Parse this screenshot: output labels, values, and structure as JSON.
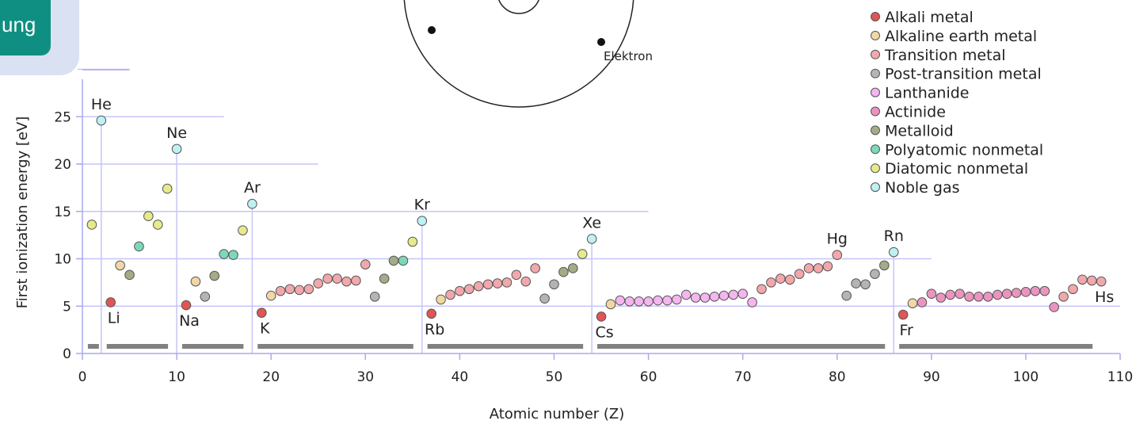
{
  "badge": {
    "text": "ung"
  },
  "atom_diagram": {
    "electron_label": "Elektron"
  },
  "colors": {
    "alkali": "#e05555",
    "alkaline_earth": "#f1d7a5",
    "transition": "#f2a8ab",
    "post_transition": "#b4b4b4",
    "lanthanide": "#f5b5ef",
    "actinide": "#ec94c0",
    "metalloid": "#a2ac86",
    "polyatomic": "#7cd8b8",
    "diatomic": "#e6ea8a",
    "noble": "#bff0f2",
    "grid": "#c6c6f8",
    "axis": "#aaaaee",
    "bar": "#808080"
  },
  "chart_data": {
    "type": "scatter",
    "xlabel": "Atomic number (Z)",
    "ylabel": "First ionization energy [eV]",
    "xlim": [
      0,
      110
    ],
    "ylim": [
      0,
      28
    ],
    "xticks": [
      0,
      10,
      20,
      30,
      40,
      50,
      60,
      70,
      80,
      90,
      100,
      110
    ],
    "yticks": [
      0,
      5,
      10,
      15,
      20,
      25
    ],
    "legend": [
      {
        "key": "alkali",
        "label": "Alkali metal"
      },
      {
        "key": "alkaline_earth",
        "label": "Alkaline earth metal"
      },
      {
        "key": "transition",
        "label": "Transition metal"
      },
      {
        "key": "post_transition",
        "label": "Post-transition metal"
      },
      {
        "key": "lanthanide",
        "label": "Lanthanide"
      },
      {
        "key": "actinide",
        "label": "Actinide"
      },
      {
        "key": "metalloid",
        "label": "Metalloid"
      },
      {
        "key": "polyatomic",
        "label": "Polyatomic nonmetal"
      },
      {
        "key": "diatomic",
        "label": "Diatomic nonmetal"
      },
      {
        "key": "noble",
        "label": "Noble gas"
      }
    ],
    "legend_position": "top-right",
    "period_bars": [
      [
        1,
        2
      ],
      [
        3,
        10
      ],
      [
        11,
        18
      ],
      [
        19,
        36
      ],
      [
        37,
        54
      ],
      [
        55,
        86
      ],
      [
        87,
        108
      ]
    ],
    "noble_gas_lines": [
      2,
      10,
      18,
      36,
      54,
      86
    ],
    "labels": [
      {
        "text": "He",
        "z": 2,
        "pos": "above"
      },
      {
        "text": "Ne",
        "z": 10,
        "pos": "above"
      },
      {
        "text": "Ar",
        "z": 18,
        "pos": "above"
      },
      {
        "text": "Kr",
        "z": 36,
        "pos": "above"
      },
      {
        "text": "Xe",
        "z": 54,
        "pos": "above"
      },
      {
        "text": "Rn",
        "z": 86,
        "pos": "above"
      },
      {
        "text": "Hg",
        "z": 80,
        "pos": "above"
      },
      {
        "text": "Li",
        "z": 3,
        "pos": "below"
      },
      {
        "text": "Na",
        "z": 11,
        "pos": "below"
      },
      {
        "text": "K",
        "z": 19,
        "pos": "below"
      },
      {
        "text": "Rb",
        "z": 37,
        "pos": "below"
      },
      {
        "text": "Cs",
        "z": 55,
        "pos": "below"
      },
      {
        "text": "Fr",
        "z": 87,
        "pos": "below"
      },
      {
        "text": "Hs",
        "z": 108,
        "pos": "below"
      }
    ],
    "points": [
      [
        1,
        13.6,
        "diatomic"
      ],
      [
        2,
        24.6,
        "noble"
      ],
      [
        3,
        5.4,
        "alkali"
      ],
      [
        4,
        9.3,
        "alkaline_earth"
      ],
      [
        5,
        8.3,
        "metalloid"
      ],
      [
        6,
        11.3,
        "polyatomic"
      ],
      [
        7,
        14.5,
        "diatomic"
      ],
      [
        8,
        13.6,
        "diatomic"
      ],
      [
        9,
        17.4,
        "diatomic"
      ],
      [
        10,
        21.6,
        "noble"
      ],
      [
        11,
        5.1,
        "alkali"
      ],
      [
        12,
        7.6,
        "alkaline_earth"
      ],
      [
        13,
        6.0,
        "post_transition"
      ],
      [
        14,
        8.2,
        "metalloid"
      ],
      [
        15,
        10.5,
        "polyatomic"
      ],
      [
        16,
        10.4,
        "polyatomic"
      ],
      [
        17,
        13.0,
        "diatomic"
      ],
      [
        18,
        15.8,
        "noble"
      ],
      [
        19,
        4.3,
        "alkali"
      ],
      [
        20,
        6.1,
        "alkaline_earth"
      ],
      [
        21,
        6.6,
        "transition"
      ],
      [
        22,
        6.8,
        "transition"
      ],
      [
        23,
        6.7,
        "transition"
      ],
      [
        24,
        6.8,
        "transition"
      ],
      [
        25,
        7.4,
        "transition"
      ],
      [
        26,
        7.9,
        "transition"
      ],
      [
        27,
        7.9,
        "transition"
      ],
      [
        28,
        7.6,
        "transition"
      ],
      [
        29,
        7.7,
        "transition"
      ],
      [
        30,
        9.4,
        "transition"
      ],
      [
        31,
        6.0,
        "post_transition"
      ],
      [
        32,
        7.9,
        "metalloid"
      ],
      [
        33,
        9.8,
        "metalloid"
      ],
      [
        34,
        9.8,
        "polyatomic"
      ],
      [
        35,
        11.8,
        "diatomic"
      ],
      [
        36,
        14.0,
        "noble"
      ],
      [
        37,
        4.2,
        "alkali"
      ],
      [
        38,
        5.7,
        "alkaline_earth"
      ],
      [
        39,
        6.2,
        "transition"
      ],
      [
        40,
        6.6,
        "transition"
      ],
      [
        41,
        6.8,
        "transition"
      ],
      [
        42,
        7.1,
        "transition"
      ],
      [
        43,
        7.3,
        "transition"
      ],
      [
        44,
        7.4,
        "transition"
      ],
      [
        45,
        7.5,
        "transition"
      ],
      [
        46,
        8.3,
        "transition"
      ],
      [
        47,
        7.6,
        "transition"
      ],
      [
        48,
        9.0,
        "transition"
      ],
      [
        49,
        5.8,
        "post_transition"
      ],
      [
        50,
        7.3,
        "post_transition"
      ],
      [
        51,
        8.6,
        "metalloid"
      ],
      [
        52,
        9.0,
        "metalloid"
      ],
      [
        53,
        10.5,
        "diatomic"
      ],
      [
        54,
        12.1,
        "noble"
      ],
      [
        55,
        3.9,
        "alkali"
      ],
      [
        56,
        5.2,
        "alkaline_earth"
      ],
      [
        57,
        5.6,
        "lanthanide"
      ],
      [
        58,
        5.5,
        "lanthanide"
      ],
      [
        59,
        5.5,
        "lanthanide"
      ],
      [
        60,
        5.5,
        "lanthanide"
      ],
      [
        61,
        5.6,
        "lanthanide"
      ],
      [
        62,
        5.6,
        "lanthanide"
      ],
      [
        63,
        5.7,
        "lanthanide"
      ],
      [
        64,
        6.2,
        "lanthanide"
      ],
      [
        65,
        5.9,
        "lanthanide"
      ],
      [
        66,
        5.9,
        "lanthanide"
      ],
      [
        67,
        6.0,
        "lanthanide"
      ],
      [
        68,
        6.1,
        "lanthanide"
      ],
      [
        69,
        6.2,
        "lanthanide"
      ],
      [
        70,
        6.3,
        "lanthanide"
      ],
      [
        71,
        5.4,
        "lanthanide"
      ],
      [
        72,
        6.8,
        "transition"
      ],
      [
        73,
        7.5,
        "transition"
      ],
      [
        74,
        7.9,
        "transition"
      ],
      [
        75,
        7.8,
        "transition"
      ],
      [
        76,
        8.4,
        "transition"
      ],
      [
        77,
        9.0,
        "transition"
      ],
      [
        78,
        9.0,
        "transition"
      ],
      [
        79,
        9.2,
        "transition"
      ],
      [
        80,
        10.4,
        "transition"
      ],
      [
        81,
        6.1,
        "post_transition"
      ],
      [
        82,
        7.4,
        "post_transition"
      ],
      [
        83,
        7.3,
        "post_transition"
      ],
      [
        84,
        8.4,
        "post_transition"
      ],
      [
        85,
        9.3,
        "metalloid"
      ],
      [
        86,
        10.7,
        "noble"
      ],
      [
        87,
        4.1,
        "alkali"
      ],
      [
        88,
        5.3,
        "alkaline_earth"
      ],
      [
        89,
        5.4,
        "actinide"
      ],
      [
        90,
        6.3,
        "actinide"
      ],
      [
        91,
        5.9,
        "actinide"
      ],
      [
        92,
        6.2,
        "actinide"
      ],
      [
        93,
        6.3,
        "actinide"
      ],
      [
        94,
        6.0,
        "actinide"
      ],
      [
        95,
        6.0,
        "actinide"
      ],
      [
        96,
        6.0,
        "actinide"
      ],
      [
        97,
        6.2,
        "actinide"
      ],
      [
        98,
        6.3,
        "actinide"
      ],
      [
        99,
        6.4,
        "actinide"
      ],
      [
        100,
        6.5,
        "actinide"
      ],
      [
        101,
        6.6,
        "actinide"
      ],
      [
        102,
        6.6,
        "actinide"
      ],
      [
        103,
        4.9,
        "actinide"
      ],
      [
        104,
        6.0,
        "transition"
      ],
      [
        105,
        6.8,
        "transition"
      ],
      [
        106,
        7.8,
        "transition"
      ],
      [
        107,
        7.7,
        "transition"
      ],
      [
        108,
        7.6,
        "transition"
      ]
    ]
  }
}
